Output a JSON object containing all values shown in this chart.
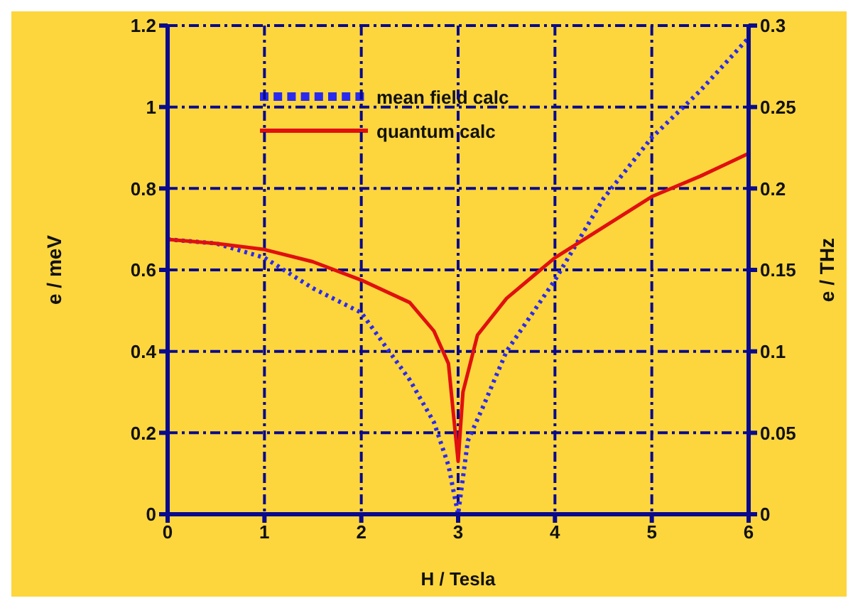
{
  "chart_data": {
    "type": "line",
    "xlabel": "H  / Tesla",
    "ylabel": "e / meV",
    "y2label": "e / THz",
    "xlim": [
      0,
      6
    ],
    "xticks": [
      0,
      1,
      2,
      3,
      4,
      5,
      6
    ],
    "ylim": [
      0,
      1.2
    ],
    "yticks": [
      0,
      0.2,
      0.4,
      0.6,
      0.8,
      1,
      1.2
    ],
    "y2lim": [
      0,
      0.3
    ],
    "y2ticks": [
      0,
      0.05,
      0.1,
      0.15,
      0.2,
      0.25,
      0.3
    ],
    "grid": true,
    "legend": "top left",
    "marker": "none",
    "series": [
      {
        "name": "mean field calc",
        "color": "#2a2aee",
        "line_style": "dotted",
        "x": [
          0,
          0.5,
          1,
          1.5,
          2,
          2.5,
          2.75,
          2.9,
          3,
          3.1,
          3.25,
          3.5,
          4,
          4.5,
          5,
          5.5,
          6
        ],
        "values": [
          0.675,
          0.665,
          0.63,
          0.555,
          0.495,
          0.33,
          0.226,
          0.12,
          0,
          0.18,
          0.26,
          0.4,
          0.575,
          0.775,
          0.925,
          1.04,
          1.17
        ]
      },
      {
        "name": "quantum calc",
        "color": "#e01010",
        "line_style": "solid",
        "x": [
          0,
          0.5,
          1,
          1.5,
          2,
          2.5,
          2.75,
          2.9,
          2.95,
          3,
          3.05,
          3.2,
          3.5,
          4,
          4.5,
          5,
          5.5,
          6
        ],
        "values": [
          0.675,
          0.665,
          0.65,
          0.62,
          0.575,
          0.52,
          0.45,
          0.37,
          0.25,
          0.13,
          0.3,
          0.44,
          0.53,
          0.63,
          0.705,
          0.78,
          0.83,
          0.886
        ]
      }
    ]
  }
}
